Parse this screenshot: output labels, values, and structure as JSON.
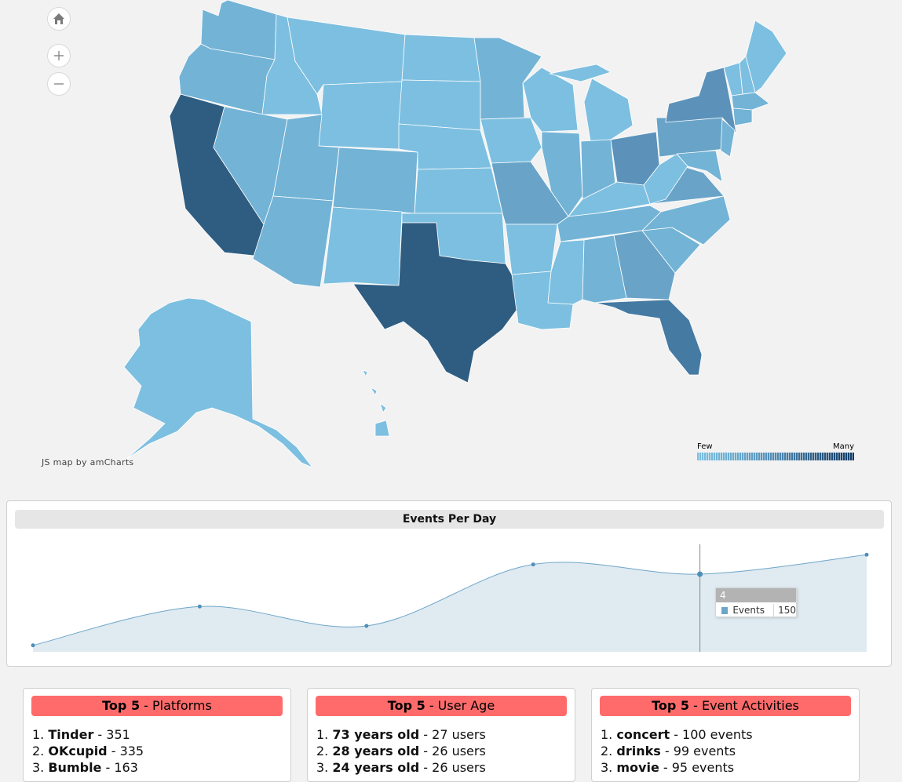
{
  "map": {
    "credit": "JS map by amCharts",
    "legend": {
      "few_label": "Few",
      "many_label": "Many"
    },
    "colors": {
      "light": "#7dbfe0",
      "light2": "#73b3d6",
      "mid": "#69a4c8",
      "mid2": "#5c92ba",
      "dark": "#457aa3",
      "darkest": "#2f5d82",
      "border": "#ffffff"
    },
    "icons": {
      "home": "home-icon",
      "zoom_in": "plus-icon",
      "zoom_out": "minus-icon"
    }
  },
  "events_panel": {
    "title": "Events Per Day",
    "tooltip": {
      "category": "4",
      "series_label": "Events",
      "value": "150"
    }
  },
  "chart_data": {
    "type": "area",
    "x": [
      0,
      1,
      2,
      3,
      4,
      5
    ],
    "series": [
      {
        "name": "Events",
        "values": [
          40,
          100,
          70,
          165,
          150,
          180
        ]
      }
    ],
    "ylim": [
      30,
      190
    ],
    "selected_index": 4,
    "grid": false,
    "color": "#6ea6c9"
  },
  "cards": [
    {
      "title_bold": "Top 5",
      "title_rest": " - Platforms",
      "items": [
        {
          "num": "1. ",
          "name": "Tinder",
          "rest": " - 351"
        },
        {
          "num": "2. ",
          "name": "OKcupid",
          "rest": " - 335"
        },
        {
          "num": "3. ",
          "name": "Bumble",
          "rest": " - 163"
        }
      ]
    },
    {
      "title_bold": "Top 5",
      "title_rest": " - User Age",
      "items": [
        {
          "num": "1. ",
          "name": "73 years old",
          "rest": " - 27 users"
        },
        {
          "num": "2. ",
          "name": "28 years old",
          "rest": " - 26 users"
        },
        {
          "num": "3. ",
          "name": "24 years old",
          "rest": " - 26 users"
        }
      ]
    },
    {
      "title_bold": "Top 5",
      "title_rest": " - Event Activities",
      "items": [
        {
          "num": "1. ",
          "name": "concert",
          "rest": " - 100 events"
        },
        {
          "num": "2. ",
          "name": "drinks",
          "rest": " - 99 events"
        },
        {
          "num": "3. ",
          "name": "movie",
          "rest": " - 95 events"
        }
      ]
    }
  ]
}
